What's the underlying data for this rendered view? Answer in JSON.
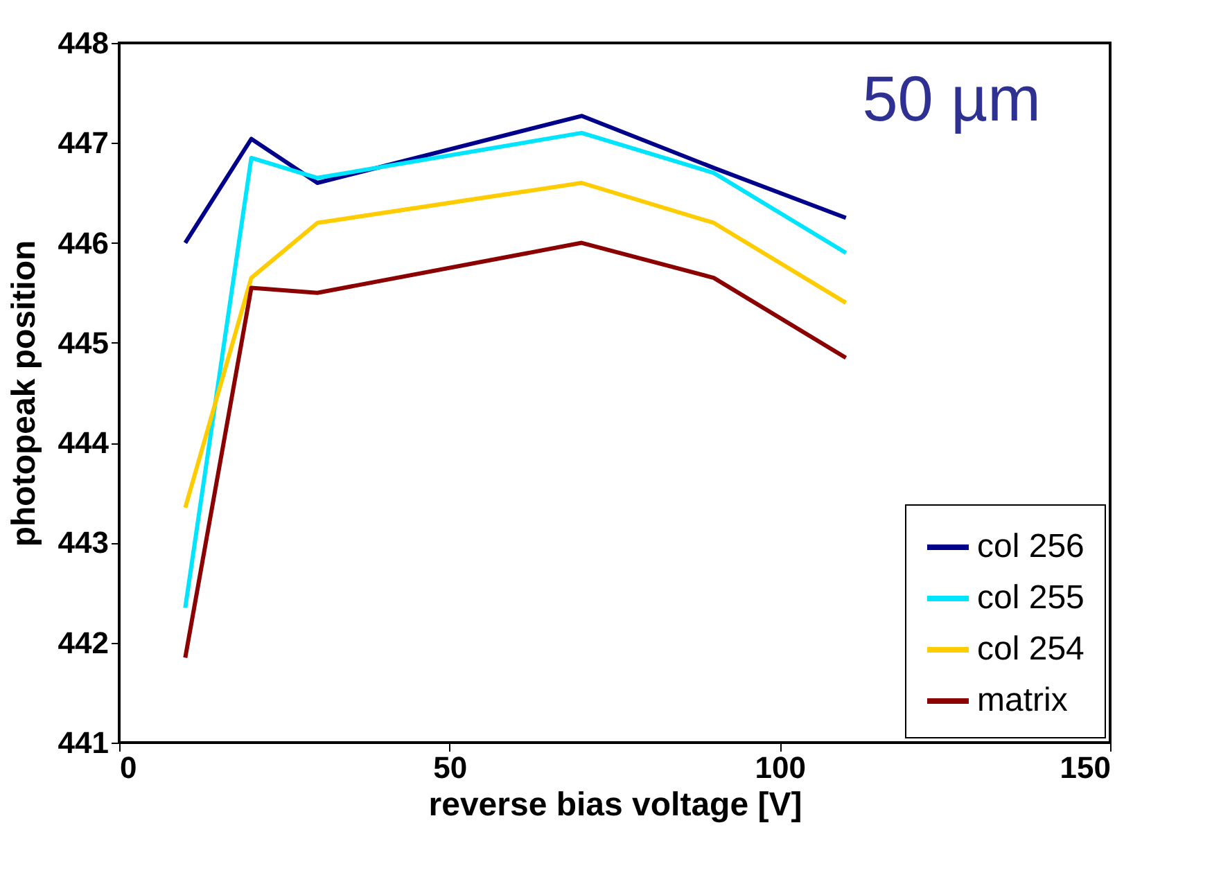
{
  "chart_data": {
    "type": "line",
    "xlabel": "reverse bias voltage [V]",
    "ylabel": "photopeak position",
    "annotations": [
      "50 µm"
    ],
    "x": [
      10,
      20,
      30,
      70,
      90,
      110
    ],
    "series": [
      {
        "name": "col 256",
        "color": "#00008b",
        "values": [
          446.0,
          447.04,
          446.6,
          447.27,
          446.75,
          446.25
        ]
      },
      {
        "name": "col 255",
        "color": "#00e5ff",
        "values": [
          442.35,
          446.85,
          446.65,
          447.1,
          446.7,
          445.9
        ]
      },
      {
        "name": "col 254",
        "color": "#ffcc00",
        "values": [
          443.35,
          445.65,
          446.2,
          446.6,
          446.2,
          445.4
        ]
      },
      {
        "name": "matrix",
        "color": "#8b0000",
        "values": [
          441.85,
          445.55,
          445.5,
          446.0,
          445.65,
          444.85
        ]
      }
    ],
    "xlim": [
      0,
      150
    ],
    "xticks": [
      0,
      50,
      100,
      150
    ],
    "ylim": [
      441,
      448
    ],
    "yticks": [
      441,
      442,
      443,
      444,
      445,
      446,
      447,
      448
    ],
    "grid": false,
    "legend": "bottom right",
    "marker": "none",
    "line_style": "solid"
  }
}
